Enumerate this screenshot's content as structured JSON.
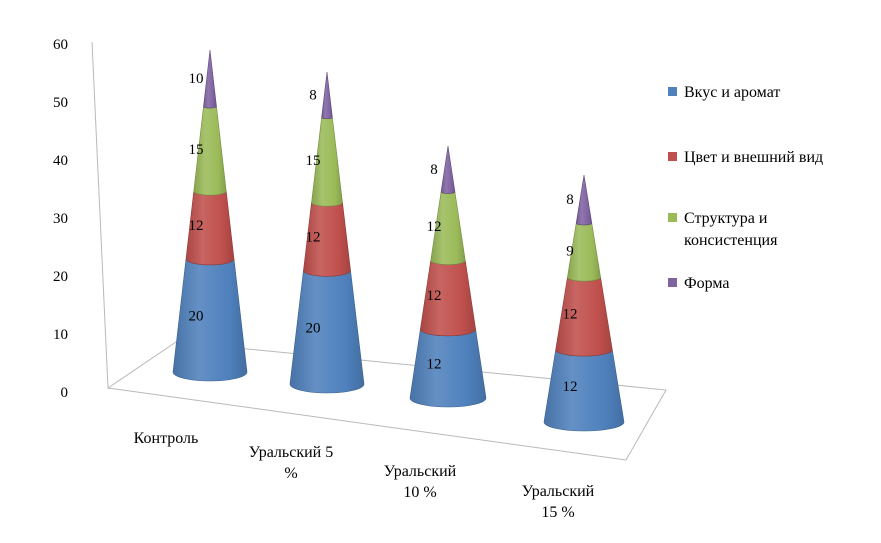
{
  "chart_data": {
    "type": "bar",
    "subtype": "3d-stacked-cone",
    "categories": [
      [
        "Контроль"
      ],
      [
        "Уральский 5",
        "%"
      ],
      [
        "Уральский",
        "10 %"
      ],
      [
        "Уральский",
        "15 %"
      ]
    ],
    "series": [
      {
        "name": "Вкус и аромат",
        "values": [
          20,
          20,
          12,
          12
        ],
        "color": "#4f81bd"
      },
      {
        "name": "Цвет и внешний вид",
        "values": [
          12,
          12,
          12,
          12
        ],
        "color": "#c0504d"
      },
      {
        "name": "Структура и консистенция",
        "values": [
          15,
          15,
          12,
          9
        ],
        "color": "#9bbb59"
      },
      {
        "name": "Форма",
        "values": [
          10,
          8,
          8,
          8
        ],
        "color": "#8064a2"
      }
    ],
    "ylim": [
      0,
      60
    ],
    "yticks": [
      0,
      10,
      20,
      30,
      40,
      50,
      60
    ],
    "legend_position": "right",
    "grid": false
  },
  "legend": [
    {
      "lines": [
        "Вкус и аромат"
      ]
    },
    {
      "lines": [
        "Цвет и внешний вид"
      ]
    },
    {
      "lines": [
        "Структура и",
        "консистенция"
      ]
    },
    {
      "lines": [
        "Форма"
      ]
    }
  ]
}
